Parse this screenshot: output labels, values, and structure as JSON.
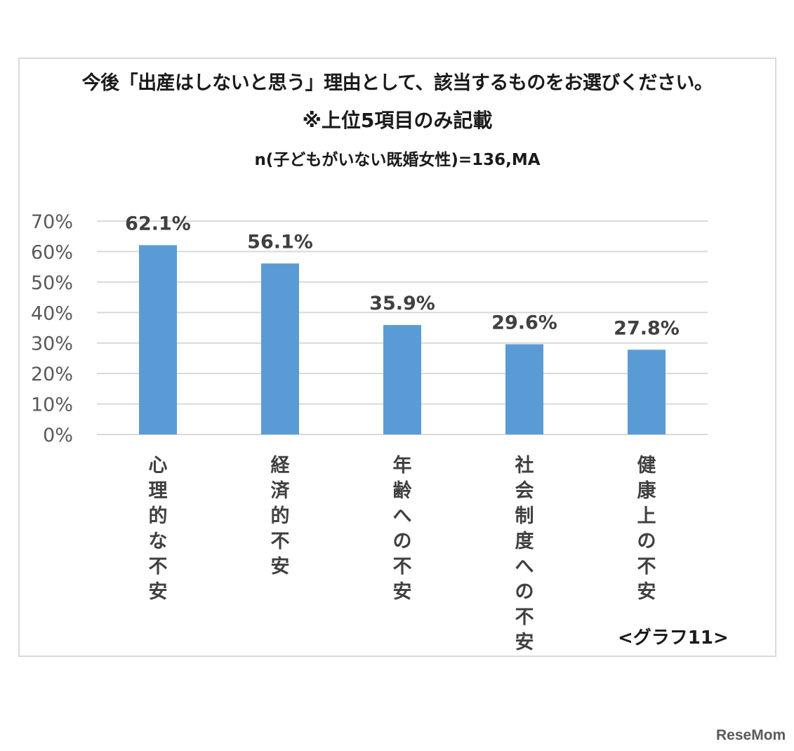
{
  "chart_data": {
    "type": "bar",
    "title": "今後「出産はしないと思う」理由として、該当するものをお選びください。",
    "subtitle": "※上位5項目のみ記載",
    "note": "n(子どもがいない既婚女性)=136,MA",
    "categories": [
      "心理的な不安",
      "経済的不安",
      "年齢への不安",
      "社会制度への不安",
      "健康上の不安"
    ],
    "values": [
      62.1,
      56.1,
      35.9,
      29.6,
      27.8
    ],
    "data_labels": [
      "62.1%",
      "56.1%",
      "35.9%",
      "29.6%",
      "27.8%"
    ],
    "ylim": [
      0,
      70
    ],
    "yticks": [
      "0%",
      "10%",
      "20%",
      "30%",
      "40%",
      "50%",
      "60%",
      "70%"
    ],
    "grid": true,
    "bar_color": "#5b9bd5",
    "grid_color": "#d9d9d9"
  },
  "caption": "<グラフ11>",
  "logo": "ReseMom"
}
